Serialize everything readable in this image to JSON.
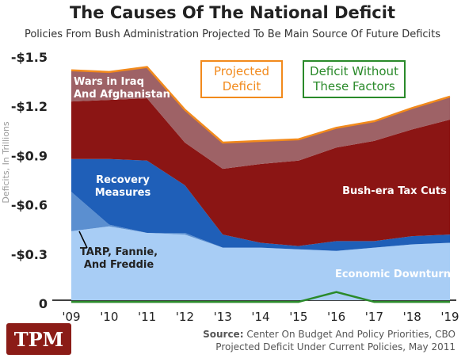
{
  "title": "The Causes Of The National Deficit",
  "subtitle": "Policies From Bush Administration Projected To Be Main Source Of Future Deficits",
  "source": {
    "lead": "Source:",
    "line1": "Center On Budget And Policy Priorities, CBO",
    "line2": "Projected Deficit Under Current Policies, May 2011"
  },
  "logo": "TPM",
  "colors": {
    "wars": "#9e6266",
    "tax_cuts": "#8b1514",
    "recovery": "#1f5fb8",
    "tarp": "#5b8fd0",
    "downturn": "#a8cdf5",
    "projected": "#f28a1c",
    "without": "#2a8a2a",
    "logo_bg": "#8b1c17"
  },
  "chart_data": {
    "type": "area",
    "ylabel": "Deficits, In Trillions",
    "x": [
      "'09",
      "'10",
      "'11",
      "'12",
      "'13",
      "'14",
      "'15",
      "'16",
      "'17",
      "'18",
      "'19"
    ],
    "yticks": [
      "-$1.5",
      "-$1.2",
      "-$0.9",
      "-$0.6",
      "-$0.3",
      "0"
    ],
    "ylim": [
      0,
      1.5
    ],
    "grid": false,
    "legend": [
      "Projected Deficit",
      "Deficit Without These Factors"
    ],
    "series": [
      {
        "name": "Economic Downturn",
        "values": [
          0.42,
          0.45,
          0.41,
          0.4,
          0.32,
          0.32,
          0.31,
          0.3,
          0.32,
          0.34,
          0.35
        ]
      },
      {
        "name": "TARP, Fannie, And Freddie",
        "values": [
          0.24,
          0.01,
          0.0,
          0.01,
          0.0,
          0.0,
          0.0,
          0.0,
          0.0,
          0.0,
          0.0
        ]
      },
      {
        "name": "Recovery Measures",
        "values": [
          0.2,
          0.4,
          0.44,
          0.29,
          0.08,
          0.03,
          0.02,
          0.06,
          0.04,
          0.05,
          0.05
        ]
      },
      {
        "name": "Bush-era Tax Cuts",
        "values": [
          0.35,
          0.36,
          0.38,
          0.26,
          0.4,
          0.48,
          0.52,
          0.57,
          0.61,
          0.65,
          0.7
        ]
      },
      {
        "name": "Wars in Iraq And Afghanistan",
        "values": [
          0.19,
          0.17,
          0.19,
          0.2,
          0.16,
          0.14,
          0.13,
          0.12,
          0.12,
          0.13,
          0.14
        ]
      }
    ],
    "projected_deficit": [
      1.4,
      1.39,
      1.42,
      1.16,
      0.96,
      0.97,
      0.98,
      1.05,
      1.09,
      1.17,
      1.24
    ],
    "deficit_without_factors": [
      -0.01,
      -0.01,
      -0.01,
      -0.01,
      -0.01,
      -0.01,
      -0.01,
      0.05,
      -0.01,
      -0.01,
      -0.01
    ],
    "annotations": {
      "wars": [
        "Wars in Iraq",
        "And Afghanistan"
      ],
      "recovery": [
        "Recovery",
        "Measures"
      ],
      "tarp": [
        "TARP, Fannie,",
        "And Freddie"
      ],
      "tax_cuts": [
        "Bush-era Tax Cuts"
      ],
      "downturn": [
        "Economic Downturn"
      ],
      "projected": [
        "Projected",
        "Deficit"
      ],
      "without": [
        "Deficit Without",
        "These Factors"
      ]
    }
  }
}
